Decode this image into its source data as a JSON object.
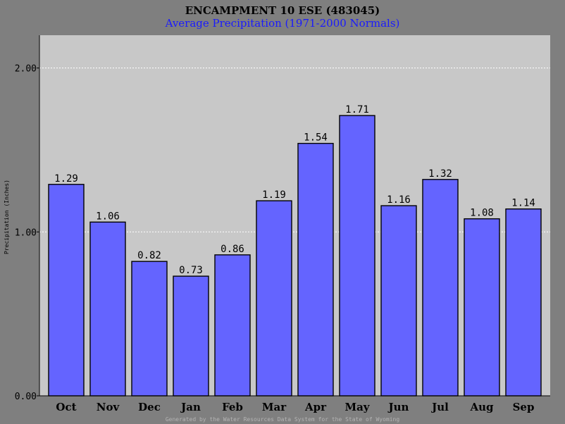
{
  "chart_data": {
    "type": "bar",
    "title": "ENCAMPMENT 10 ESE (483045)",
    "subtitle": "Average Precipitation (1971-2000 Normals)",
    "ylabel": "Precipitation (Inches)",
    "xlabel": "",
    "categories": [
      "Oct",
      "Nov",
      "Dec",
      "Jan",
      "Feb",
      "Mar",
      "Apr",
      "May",
      "Jun",
      "Jul",
      "Aug",
      "Sep"
    ],
    "values": [
      1.29,
      1.06,
      0.82,
      0.73,
      0.86,
      1.19,
      1.54,
      1.71,
      1.16,
      1.32,
      1.08,
      1.14
    ],
    "value_labels": [
      "1.29",
      "1.06",
      "0.82",
      "0.73",
      "0.86",
      "1.19",
      "1.54",
      "1.71",
      "1.16",
      "1.32",
      "1.08",
      "1.14"
    ],
    "ylim": [
      0,
      2.2
    ],
    "yticks": [
      0,
      1,
      2
    ],
    "ytick_labels": [
      "0.00",
      "1.00",
      "2.00"
    ],
    "grid": true,
    "legend": "none"
  },
  "footer": "Generated by the Water Resources Data System for the State of Wyoming",
  "colors": {
    "bar_fill": "#6464ff",
    "bar_stroke": "#000000",
    "plot_bg": "#c8c8c8",
    "frame_bg": "#7f7f7f",
    "title": "#000000",
    "subtitle": "#1a1aff",
    "footer": "#b4b4b4",
    "grid": "#ffffff"
  }
}
